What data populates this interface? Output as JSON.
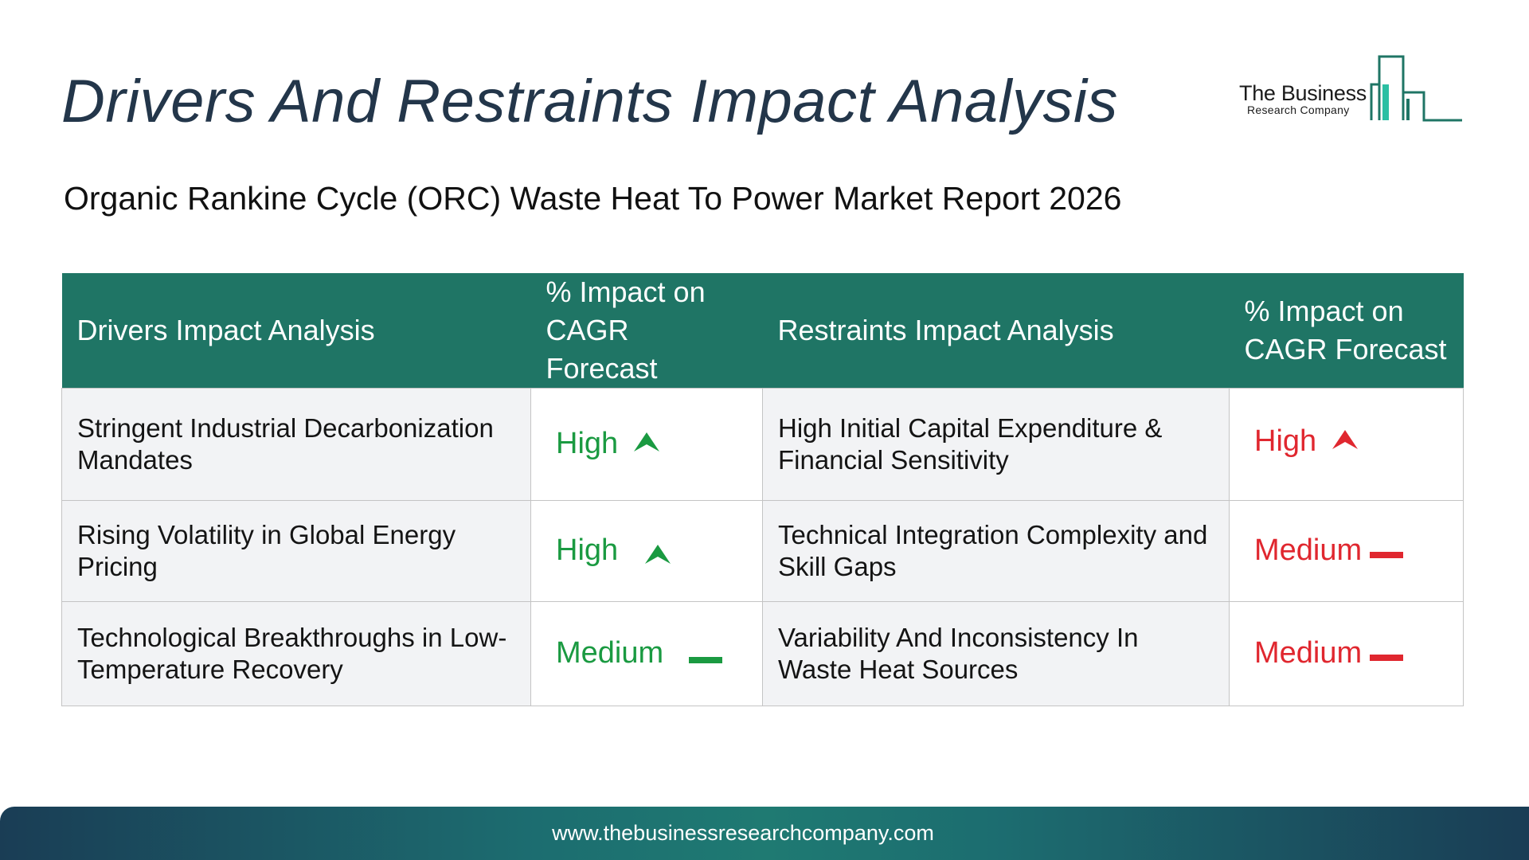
{
  "page": {
    "title": "Drivers And Restraints Impact Analysis",
    "subtitle": "Organic Rankine Cycle (ORC) Waste Heat To Power Market Report 2026"
  },
  "logo": {
    "name": "The Business",
    "sub": "Research Company"
  },
  "table": {
    "headers": [
      "Drivers Impact Analysis",
      "% Impact on CAGR Forecast",
      "Restraints Impact Analysis",
      "% Impact on CAGR Forecast"
    ],
    "rows": [
      {
        "driver": "Stringent Industrial Decarbonization Mandates",
        "driver_impact": "High",
        "driver_icon": "arrow-up-icon",
        "restraint": "High Initial Capital Expenditure & Financial Sensitivity",
        "restraint_impact": "High",
        "restraint_icon": "arrow-up-icon"
      },
      {
        "driver": "Rising Volatility in Global Energy Pricing",
        "driver_impact": "High",
        "driver_icon": "arrow-up-icon",
        "restraint": "Technical Integration Complexity and Skill Gaps",
        "restraint_impact": "Medium",
        "restraint_icon": "dash-icon"
      },
      {
        "driver": "Technological Breakthroughs in Low-Temperature Recovery",
        "driver_impact": "Medium",
        "driver_icon": "dash-icon",
        "restraint": "Variability And Inconsistency In Waste Heat Sources",
        "restraint_impact": "Medium",
        "restraint_icon": "dash-icon"
      }
    ]
  },
  "colors": {
    "header_bg": "#1f7565",
    "driver_impact": "#1a9a41",
    "restraint_impact": "#e0272f",
    "title": "#23364a"
  },
  "footer": {
    "url": "www.thebusinessresearchcompany.com"
  }
}
